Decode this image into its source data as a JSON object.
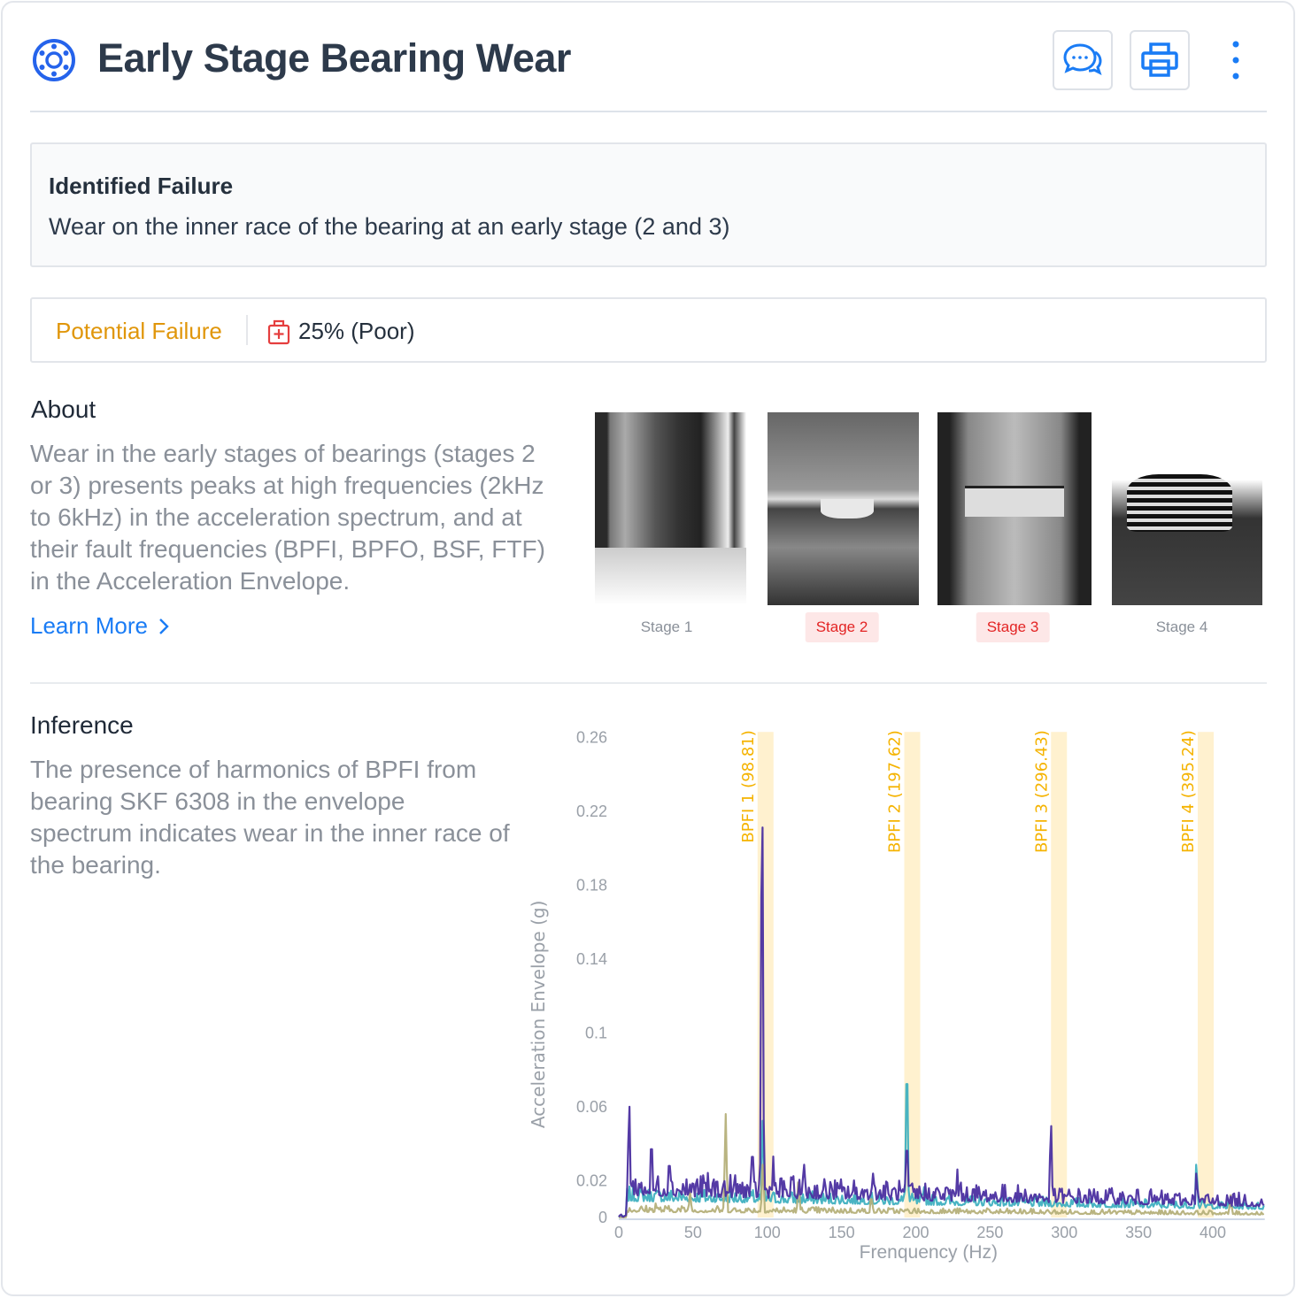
{
  "header": {
    "title": "Early Stage Bearing Wear",
    "icon": "bearing-icon",
    "buttons": [
      {
        "icon": "chat-icon"
      },
      {
        "icon": "print-icon"
      },
      {
        "icon": "kebab-menu-icon"
      }
    ]
  },
  "identified": {
    "label": "Identified Failure",
    "text": "Wear on the inner race of the bearing at an early stage (2 and 3)"
  },
  "status": {
    "label": "Potential Failure",
    "value": "25% (Poor)",
    "icon": "health-kit-icon",
    "label_color": "#e0960a"
  },
  "about": {
    "heading": "About",
    "text": "Wear in the early stages of bearings (stages 2 or 3) presents peaks at high frequencies (2kHz to 6kHz) in the acceleration spectrum, and at their fault frequencies (BPFI, BPFO, BSF, FTF) in the Acceleration Envelope.",
    "link": "Learn More",
    "stages": [
      {
        "label": "Stage 1",
        "highlighted": false
      },
      {
        "label": "Stage 2",
        "highlighted": true
      },
      {
        "label": "Stage 3",
        "highlighted": true
      },
      {
        "label": "Stage 4",
        "highlighted": false
      }
    ]
  },
  "inference": {
    "heading": "Inference",
    "text": "The presence of harmonics of BPFI from bearing SKF 6308 in the envelope spectrum indicates wear in the inner race of the bearing."
  },
  "chart_data": {
    "type": "line",
    "xlabel": "Frenquency (Hz)",
    "ylabel": "Acceleration Envelope (g)",
    "xlim": [
      0,
      435
    ],
    "ylim": [
      0,
      0.26
    ],
    "xticks": [
      "0",
      "50",
      "100",
      "150",
      "200",
      "250",
      "300",
      "350",
      "400"
    ],
    "yticks": [
      "0",
      "0.02",
      "0.06",
      "0.1",
      "0.14",
      "0.18",
      "0.22",
      "0.26"
    ],
    "bands": [
      {
        "label": "BPFI 1 (98.81)",
        "x": 98.81
      },
      {
        "label": "BPFI 2 (197.62)",
        "x": 197.62
      },
      {
        "label": "BPFI 3 (296.43)",
        "x": 296.43
      },
      {
        "label": "BPFI 4 (395.24)",
        "x": 395.24
      }
    ],
    "band_color": "#fff1cf",
    "band_label_color": "#f5b301",
    "series": [
      {
        "name": "teal",
        "color": "#3fb0c0",
        "baseline": 0.009,
        "noise": 0.008,
        "peaks": [
          [
            97,
            0.055
          ],
          [
            194,
            0.088
          ],
          [
            389,
            0.03
          ],
          [
            206,
            0.02
          ]
        ]
      },
      {
        "name": "olive",
        "color": "#b5b07a",
        "baseline": 0.003,
        "noise": 0.004,
        "peaks": [
          [
            72,
            0.056
          ],
          [
            97,
            0.03
          ],
          [
            121,
            0.02
          ],
          [
            48,
            0.015
          ],
          [
            412,
            0.012
          ],
          [
            25,
            0.008
          ],
          [
            170,
            0.012
          ]
        ]
      },
      {
        "name": "purple",
        "color": "#4b2fa0",
        "baseline": 0.012,
        "noise": 0.014,
        "peaks": [
          [
            7,
            0.063
          ],
          [
            22,
            0.045
          ],
          [
            34,
            0.034
          ],
          [
            90,
            0.04
          ],
          [
            96.5,
            0.236
          ],
          [
            104,
            0.033
          ],
          [
            125,
            0.03
          ],
          [
            171,
            0.025
          ],
          [
            194,
            0.044
          ],
          [
            228,
            0.026
          ],
          [
            291,
            0.052
          ],
          [
            389,
            0.025
          ]
        ]
      }
    ]
  }
}
